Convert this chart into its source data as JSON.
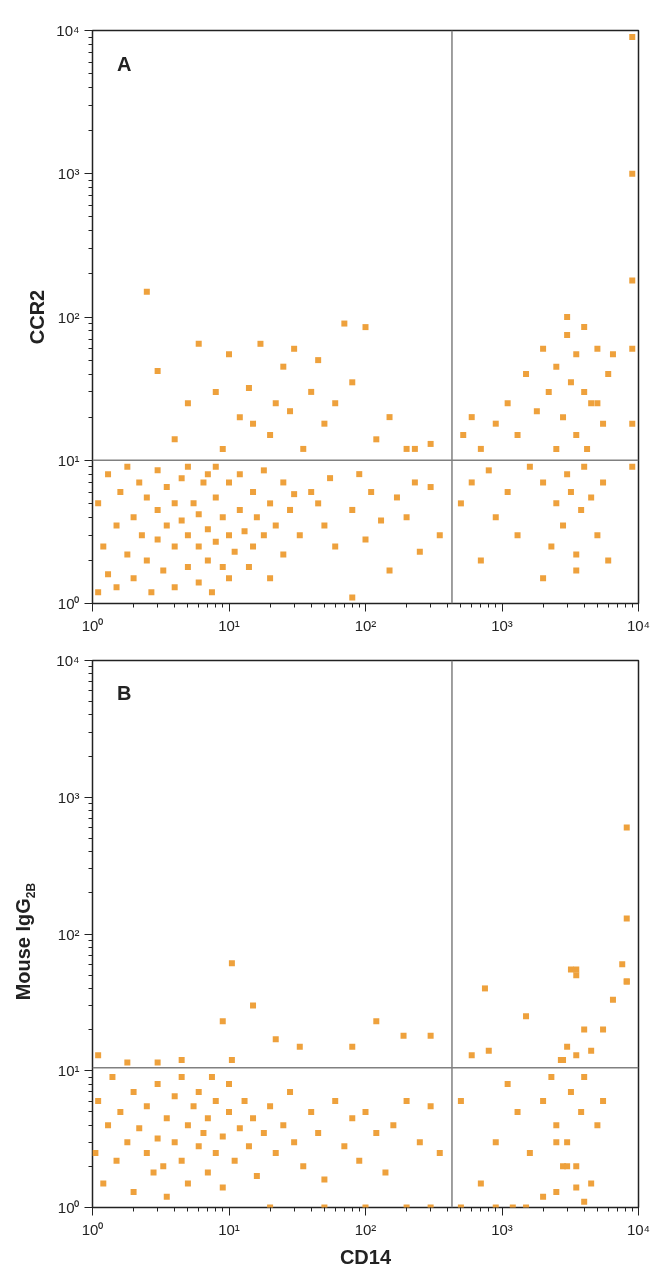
{
  "chart_data": [
    {
      "type": "scatter",
      "title": "A",
      "ylabel": "CCR2",
      "marker": "square",
      "log": "xy",
      "xlim": [
        1,
        10000
      ],
      "ylim": [
        1,
        10000
      ],
      "xticks": [
        {
          "value": 1,
          "label": "10⁰"
        },
        {
          "value": 10,
          "label": "10¹"
        },
        {
          "value": 100,
          "label": "10²"
        },
        {
          "value": 1000,
          "label": "10³"
        },
        {
          "value": 10000,
          "label": "10⁴"
        }
      ],
      "yticks": [
        {
          "value": 1,
          "label": "10⁰"
        },
        {
          "value": 10,
          "label": "10¹"
        },
        {
          "value": 100,
          "label": "10²"
        },
        {
          "value": 1000,
          "label": "10³"
        },
        {
          "value": 10000,
          "label": "10⁴"
        }
      ],
      "ref_lines": [
        {
          "axis": "x",
          "value": 430,
          "color": "#808080"
        },
        {
          "axis": "y",
          "value": 10,
          "color": "#808080"
        }
      ],
      "series": [
        {
          "color": "#eea13c",
          "x": [
            1.1,
            1.1,
            1.2,
            1.3,
            1.3,
            1.5,
            1.5,
            1.6,
            1.8,
            1.8,
            2,
            2,
            2.2,
            2.3,
            2.5,
            2.5,
            2.7,
            3,
            3,
            3,
            3.3,
            3.5,
            3.5,
            4,
            4,
            4,
            4.5,
            4.5,
            5,
            5,
            5,
            5.5,
            6,
            6,
            6,
            6.5,
            7,
            7,
            7,
            7.5,
            8,
            8,
            8,
            9,
            9,
            10,
            10,
            10,
            11,
            12,
            12,
            13,
            14,
            15,
            15,
            16,
            18,
            18,
            20,
            20,
            22,
            25,
            25,
            28,
            30,
            33,
            40,
            45,
            50,
            55,
            60,
            80,
            80,
            90,
            100,
            110,
            130,
            150,
            170,
            200,
            230,
            250,
            300,
            350,
            2.5,
            3,
            4,
            5,
            6,
            8,
            9,
            10,
            12,
            14,
            15,
            17,
            20,
            22,
            25,
            28,
            30,
            35,
            40,
            45,
            50,
            60,
            70,
            80,
            100,
            120,
            150,
            200,
            230,
            300,
            520,
            600,
            700,
            900,
            1100,
            1300,
            1500,
            1800,
            2000,
            2200,
            2500,
            2500,
            2800,
            3000,
            3000,
            3200,
            3500,
            3500,
            4000,
            4000,
            4200,
            4500,
            5000,
            5000,
            5500,
            6000,
            6500,
            500,
            600,
            700,
            800,
            900,
            1100,
            1300,
            1600,
            2000,
            2300,
            2500,
            2800,
            3000,
            3200,
            3500,
            3800,
            4000,
            4500,
            5000,
            5500,
            6000,
            3500,
            2000,
            9000,
            9000,
            9000,
            9000,
            9000,
            9000
          ],
          "values": [
            1.2,
            5,
            2.5,
            1.6,
            8,
            3.5,
            1.3,
            6,
            2.2,
            9,
            4,
            1.5,
            7,
            3,
            2,
            5.5,
            1.2,
            2.8,
            4.5,
            8.5,
            1.7,
            3.5,
            6.5,
            1.3,
            2.5,
            5,
            3.8,
            7.5,
            1.8,
            3,
            9,
            5,
            1.4,
            2.5,
            4.2,
            7,
            2,
            3.3,
            8,
            1.2,
            2.7,
            5.5,
            9,
            1.8,
            4,
            1.5,
            3,
            7,
            2.3,
            4.5,
            8,
            3.2,
            1.8,
            2.5,
            6,
            4,
            3,
            8.5,
            1.5,
            5,
            3.5,
            2.2,
            7,
            4.5,
            5.8,
            3,
            6,
            5,
            3.5,
            7.5,
            2.5,
            1.1,
            4.5,
            8,
            2.8,
            6,
            3.8,
            1.7,
            5.5,
            4,
            7,
            2.3,
            6.5,
            3,
            150,
            42,
            14,
            25,
            65,
            30,
            12,
            55,
            20,
            32,
            18,
            65,
            15,
            25,
            45,
            22,
            60,
            12,
            30,
            50,
            18,
            25,
            90,
            35,
            85,
            14,
            20,
            12,
            12,
            13,
            15,
            20,
            12,
            18,
            25,
            15,
            40,
            22,
            60,
            30,
            12,
            45,
            20,
            75,
            100,
            35,
            15,
            55,
            85,
            30,
            12,
            25,
            60,
            25,
            18,
            40,
            55,
            5,
            7,
            2,
            8.5,
            4,
            6,
            3,
            9,
            7,
            2.5,
            5,
            3.5,
            8,
            6,
            2.2,
            4.5,
            9,
            5.5,
            3,
            7,
            2,
            1.7,
            1.5,
            9000,
            1000,
            180,
            60,
            18,
            9
          ]
        }
      ]
    },
    {
      "type": "scatter",
      "title": "B",
      "xlabel": "CD14",
      "ylabel": "Mouse IgG$_{2B}$",
      "marker": "square",
      "log": "xy",
      "xlim": [
        1,
        10000
      ],
      "ylim": [
        1,
        10000
      ],
      "xticks": [
        {
          "value": 1,
          "label": "10⁰"
        },
        {
          "value": 10,
          "label": "10¹"
        },
        {
          "value": 100,
          "label": "10²"
        },
        {
          "value": 1000,
          "label": "10³"
        },
        {
          "value": 10000,
          "label": "10⁴"
        }
      ],
      "yticks": [
        {
          "value": 1,
          "label": "10⁰"
        },
        {
          "value": 10,
          "label": "10¹"
        },
        {
          "value": 100,
          "label": "10²"
        },
        {
          "value": 1000,
          "label": "10³"
        },
        {
          "value": 10000,
          "label": "10⁴"
        }
      ],
      "ref_lines": [
        {
          "axis": "x",
          "value": 430,
          "color": "#808080"
        },
        {
          "axis": "y",
          "value": 10.5,
          "color": "#808080"
        }
      ],
      "series": [
        {
          "color": "#eea13c",
          "x": [
            1.05,
            1.1,
            1.2,
            1.3,
            1.4,
            1.5,
            1.6,
            1.8,
            2,
            2,
            2.2,
            2.5,
            2.5,
            2.8,
            3,
            3,
            3.3,
            3.5,
            3.5,
            4,
            4,
            4.5,
            4.5,
            5,
            5,
            5.5,
            6,
            6,
            6.5,
            7,
            7,
            7.5,
            8,
            8,
            9,
            9,
            10,
            10,
            11,
            12,
            13,
            14,
            15,
            16,
            18,
            20,
            22,
            25,
            28,
            30,
            35,
            40,
            45,
            50,
            60,
            70,
            80,
            90,
            100,
            120,
            140,
            160,
            200,
            250,
            300,
            350,
            20,
            50,
            100,
            200,
            300,
            1.1,
            1.8,
            3,
            4.5,
            10.5,
            15,
            9,
            22,
            33,
            80,
            120,
            190,
            300,
            10.5,
            500,
            600,
            750,
            900,
            1100,
            1300,
            1600,
            2000,
            2300,
            2500,
            2800,
            3000,
            3200,
            3500,
            3800,
            4000,
            4500,
            5000,
            5500,
            2500,
            2800,
            3000,
            3500,
            4000,
            4500,
            2700,
            3200,
            3500,
            3500,
            5500,
            6500,
            8200,
            8200,
            8200,
            8200,
            7600,
            500,
            700,
            900,
            1200,
            1500,
            2000,
            2500,
            3000,
            3500,
            4000,
            1500,
            800
          ],
          "values": [
            2.5,
            6,
            1.5,
            4,
            9,
            2.2,
            5,
            3,
            1.3,
            7,
            3.8,
            2.5,
            5.5,
            1.8,
            3.2,
            8,
            2,
            4.5,
            1.2,
            6.5,
            3,
            2.2,
            9,
            4,
            1.5,
            5.5,
            2.8,
            7,
            3.5,
            1.8,
            4.5,
            9,
            2.5,
            6,
            3.3,
            1.4,
            5,
            8,
            2.2,
            3.8,
            6,
            2.8,
            4.5,
            1.7,
            3.5,
            5.5,
            2.5,
            4,
            7,
            3,
            2,
            5,
            3.5,
            1.6,
            6,
            2.8,
            4.5,
            2.2,
            5,
            3.5,
            1.8,
            4,
            6,
            3,
            5.5,
            2.5,
            1,
            1,
            1,
            1,
            1,
            13,
            11.5,
            11.5,
            12,
            61,
            30,
            23,
            17,
            15,
            15,
            23,
            18,
            18,
            12,
            6,
            13,
            40,
            3,
            8,
            5,
            2.5,
            6,
            9,
            4,
            12,
            3,
            7,
            2,
            5,
            9,
            1.5,
            4,
            6,
            3,
            2,
            15,
            13,
            20,
            14,
            12,
            55,
            55,
            50,
            20,
            33,
            45,
            45,
            130,
            600,
            60,
            1,
            1.5,
            1,
            1,
            1,
            1.2,
            1.3,
            2,
            1.4,
            1.1,
            25,
            14
          ]
        }
      ]
    }
  ]
}
